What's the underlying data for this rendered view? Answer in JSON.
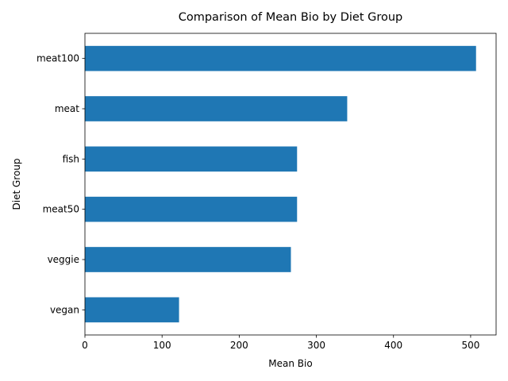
{
  "chart_data": {
    "type": "bar",
    "orientation": "horizontal",
    "title": "Comparison of Mean Bio by Diet Group",
    "xlabel": "Mean Bio",
    "ylabel": "Diet Group",
    "categories": [
      "vegan",
      "veggie",
      "meat50",
      "fish",
      "meat",
      "meat100"
    ],
    "values": [
      122,
      267,
      275,
      275,
      340,
      507
    ],
    "xlim": [
      0,
      533
    ],
    "xticks": [
      0,
      100,
      200,
      300,
      400,
      500
    ],
    "grid": false,
    "bar_color": "#1f77b4"
  }
}
